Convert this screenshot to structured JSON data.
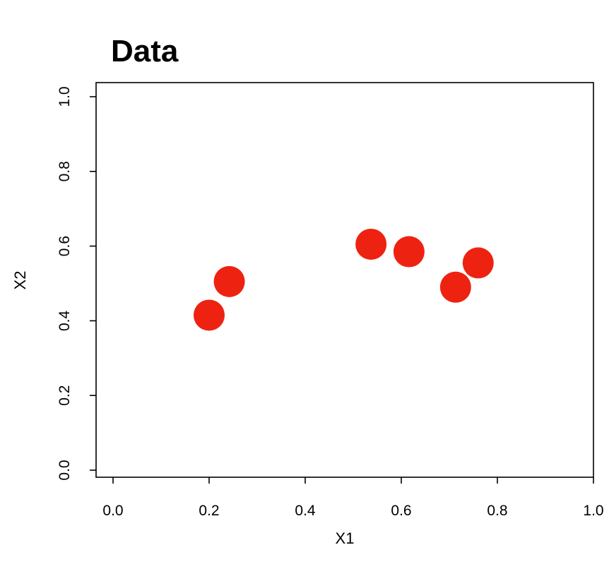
{
  "chart_data": {
    "type": "scatter",
    "title": "Data",
    "xlabel": "X1",
    "ylabel": "X2",
    "xlim": [
      0.0,
      1.0
    ],
    "ylim": [
      0.0,
      1.0
    ],
    "x_ticks": [
      0.0,
      0.2,
      0.4,
      0.6,
      0.8,
      1.0
    ],
    "y_ticks": [
      0.0,
      0.2,
      0.4,
      0.6,
      0.8,
      1.0
    ],
    "x_tick_labels": [
      "0.0",
      "0.2",
      "0.4",
      "0.6",
      "0.8",
      "1.0"
    ],
    "y_tick_labels": [
      "0.0",
      "0.2",
      "0.4",
      "0.6",
      "0.8",
      "1.0"
    ],
    "grid": false,
    "legend": "none",
    "point_color": "#ee2211",
    "points": [
      {
        "x": 0.2,
        "y": 0.415
      },
      {
        "x": 0.242,
        "y": 0.505
      },
      {
        "x": 0.537,
        "y": 0.605
      },
      {
        "x": 0.616,
        "y": 0.585
      },
      {
        "x": 0.713,
        "y": 0.49
      },
      {
        "x": 0.76,
        "y": 0.555
      }
    ]
  }
}
